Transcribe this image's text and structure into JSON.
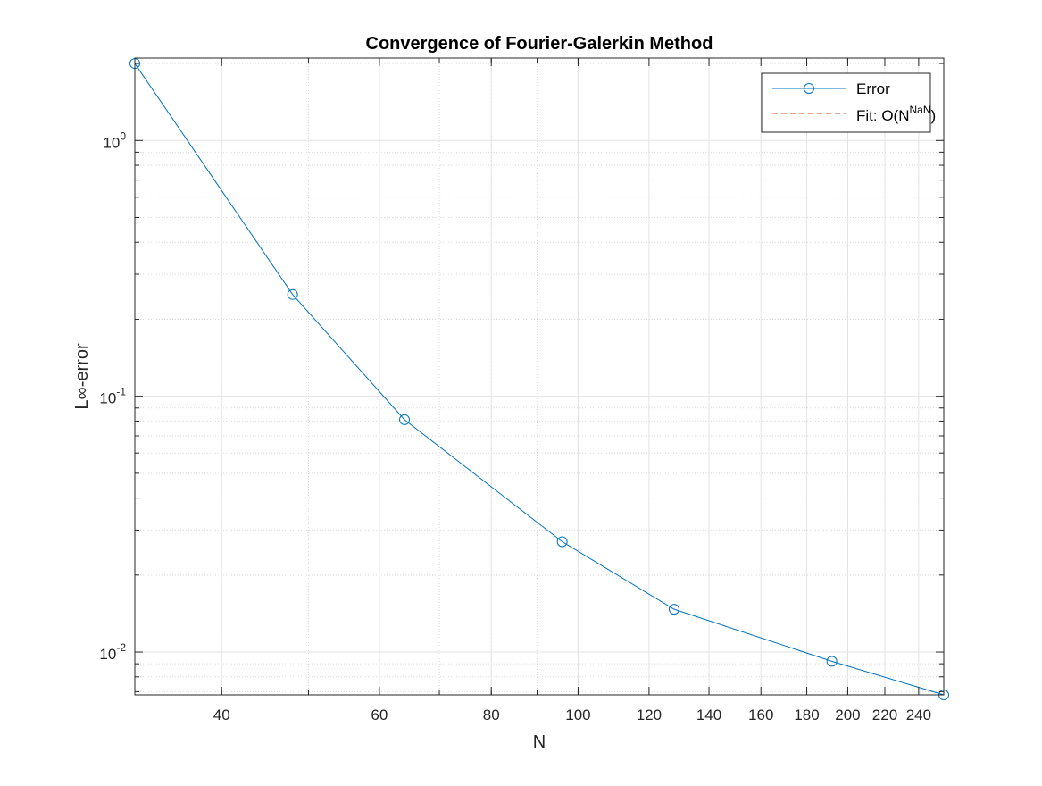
{
  "chart_data": {
    "type": "line",
    "title": "Convergence of Fourier-Galerkin Method",
    "xlabel": "N",
    "ylabel": "L∞-error",
    "xscale": "log",
    "yscale": "log",
    "xlim": [
      32,
      256
    ],
    "ylim": [
      0.0068,
      2.1
    ],
    "grid": true,
    "minor_grid": true,
    "legend_position": "top-right",
    "x_ticks": [
      {
        "value": 40,
        "label": "40"
      },
      {
        "value": 60,
        "label": "60"
      },
      {
        "value": 80,
        "label": "80"
      },
      {
        "value": 100,
        "label": "100"
      },
      {
        "value": 120,
        "label": "120"
      },
      {
        "value": 140,
        "label": "140"
      },
      {
        "value": 160,
        "label": "160"
      },
      {
        "value": 180,
        "label": "180"
      },
      {
        "value": 200,
        "label": "200"
      },
      {
        "value": 220,
        "label": "220"
      },
      {
        "value": 240,
        "label": "240"
      }
    ],
    "y_ticks": [
      {
        "value": 1,
        "base": "10",
        "exp": "0"
      },
      {
        "value": 0.1,
        "base": "10",
        "exp": "-1"
      },
      {
        "value": 0.01,
        "base": "10",
        "exp": "-2"
      }
    ],
    "series": [
      {
        "name": "Error",
        "color": "#0072BD",
        "style": "solid",
        "marker": "circle",
        "x": [
          32,
          48,
          64,
          96,
          128,
          192,
          256
        ],
        "y": [
          2.0,
          0.25,
          0.081,
          0.027,
          0.0147,
          0.0092,
          0.0068
        ]
      },
      {
        "name": "Fit: O(N^NaN)",
        "legend_main": "Fit: O(N",
        "legend_sup": "NaN",
        "legend_tail": ")",
        "color": "#D95319",
        "style": "dashed",
        "marker": "none",
        "x": [],
        "y": []
      }
    ]
  }
}
